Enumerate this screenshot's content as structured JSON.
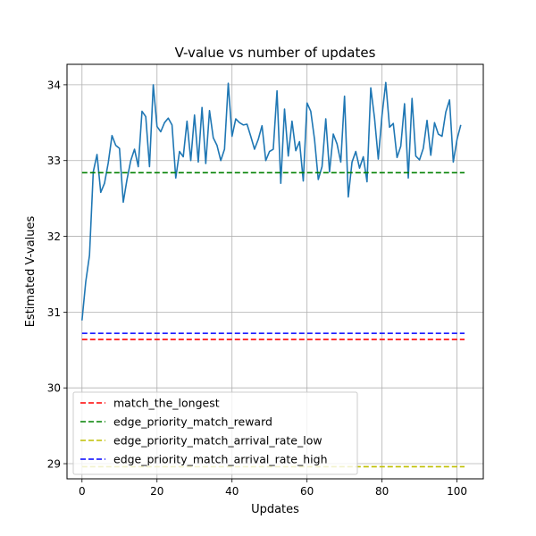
{
  "chart_data": {
    "type": "line",
    "title": "V-value vs number of updates",
    "xlabel": "Updates",
    "ylabel": "Estimated V-values",
    "xlim": [
      -4,
      107
    ],
    "ylim": [
      28.8,
      34.27
    ],
    "xticks": [
      0,
      20,
      40,
      60,
      80,
      100
    ],
    "yticks": [
      29,
      30,
      31,
      32,
      33,
      34
    ],
    "grid": true,
    "legend_position": "lower-left",
    "series": [
      {
        "name": "",
        "style": "solid",
        "color": "#1f77b4",
        "x": [
          0,
          1,
          2,
          3,
          4,
          5,
          6,
          7,
          8,
          9,
          10,
          11,
          12,
          13,
          14,
          15,
          16,
          17,
          18,
          19,
          20,
          21,
          22,
          23,
          24,
          25,
          26,
          27,
          28,
          29,
          30,
          31,
          32,
          33,
          34,
          35,
          36,
          37,
          38,
          39,
          40,
          41,
          42,
          43,
          44,
          45,
          46,
          47,
          48,
          49,
          50,
          51,
          52,
          53,
          54,
          55,
          56,
          57,
          58,
          59,
          60,
          61,
          62,
          63,
          64,
          65,
          66,
          67,
          68,
          69,
          70,
          71,
          72,
          73,
          74,
          75,
          76,
          77,
          78,
          79,
          80,
          81,
          82,
          83,
          84,
          85,
          86,
          87,
          88,
          89,
          90,
          91,
          92,
          93,
          94,
          95,
          96,
          97,
          98,
          99,
          100,
          101
        ],
        "y": [
          30.89,
          31.4,
          31.75,
          32.85,
          33.08,
          32.58,
          32.7,
          32.97,
          33.33,
          33.2,
          33.16,
          32.45,
          32.75,
          33.0,
          33.15,
          32.92,
          33.65,
          33.58,
          32.92,
          34.0,
          33.45,
          33.38,
          33.5,
          33.56,
          33.47,
          32.77,
          33.12,
          33.05,
          33.52,
          33.0,
          33.6,
          32.98,
          33.7,
          32.96,
          33.66,
          33.3,
          33.2,
          33.0,
          33.15,
          34.02,
          33.32,
          33.55,
          33.5,
          33.47,
          33.48,
          33.32,
          33.15,
          33.28,
          33.46,
          33.0,
          33.12,
          33.15,
          33.92,
          32.7,
          33.68,
          33.06,
          33.52,
          33.13,
          33.25,
          32.73,
          33.76,
          33.65,
          33.28,
          32.75,
          32.92,
          33.55,
          32.85,
          33.35,
          33.22,
          32.98,
          33.85,
          32.52,
          32.98,
          33.12,
          32.9,
          33.05,
          32.72,
          33.96,
          33.56,
          33.02,
          33.6,
          34.03,
          33.44,
          33.49,
          33.04,
          33.19,
          33.75,
          32.77,
          33.82,
          33.06,
          33.01,
          33.16,
          33.53,
          33.07,
          33.5,
          33.35,
          33.32,
          33.64,
          33.8,
          32.98,
          33.28,
          33.47
        ]
      },
      {
        "name": "match_the_longest",
        "style": "dashed",
        "color": "#ff0000",
        "x": [
          0,
          102
        ],
        "y": [
          30.64,
          30.64
        ]
      },
      {
        "name": "edge_priority_match_reward",
        "style": "dashed",
        "color": "#008000",
        "x": [
          0,
          102
        ],
        "y": [
          32.84,
          32.84
        ]
      },
      {
        "name": "edge_priority_match_arrival_rate_low",
        "style": "dashed",
        "color": "#bfbf00",
        "x": [
          0,
          102
        ],
        "y": [
          28.96,
          28.96
        ]
      },
      {
        "name": "edge_priority_match_arrival_rate_high",
        "style": "dashed",
        "color": "#0000ff",
        "x": [
          0,
          102
        ],
        "y": [
          30.72,
          30.72
        ]
      }
    ],
    "legend_order": [
      1,
      2,
      3,
      4
    ]
  }
}
